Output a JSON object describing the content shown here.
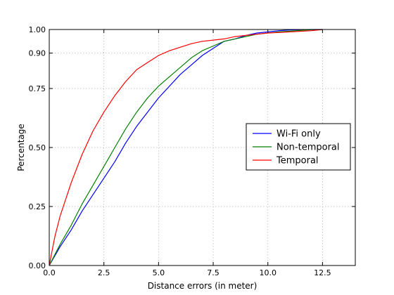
{
  "chart_data": {
    "type": "line",
    "title": "",
    "xlabel": "Distance errors (in meter)",
    "ylabel": "Percentage",
    "xlim": [
      0,
      14
    ],
    "ylim": [
      0,
      1
    ],
    "xticks": [
      0,
      2.5,
      5,
      7.5,
      10,
      12.5
    ],
    "xtick_labels": [
      "0.0",
      "2.5",
      "5.0",
      "7.5",
      "10.0",
      "12.5"
    ],
    "yticks": [
      0,
      0.25,
      0.5,
      0.75,
      0.9,
      1.0
    ],
    "ytick_labels": [
      "0.00",
      "0.25",
      "0.50",
      "0.75",
      "0.90",
      "1.00"
    ],
    "grid": true,
    "legend_position": "center-right",
    "series": [
      {
        "name": "Wi-Fi only",
        "color": "#0000ff",
        "x": [
          0,
          0.5,
          1.0,
          1.5,
          2.0,
          2.5,
          3.0,
          3.5,
          4.0,
          4.5,
          5.0,
          5.5,
          6.0,
          6.5,
          7.0,
          7.5,
          8.0,
          8.5,
          9.0,
          9.5,
          10.0,
          10.5,
          11.0,
          11.5,
          12.0,
          12.5
        ],
        "y": [
          0.0,
          0.08,
          0.15,
          0.23,
          0.3,
          0.37,
          0.44,
          0.52,
          0.59,
          0.65,
          0.71,
          0.76,
          0.81,
          0.85,
          0.89,
          0.92,
          0.95,
          0.96,
          0.975,
          0.985,
          0.99,
          0.995,
          0.998,
          0.999,
          1.0,
          1.0
        ]
      },
      {
        "name": "Non-temporal",
        "color": "#008000",
        "x": [
          0,
          0.5,
          1.0,
          1.5,
          2.0,
          2.5,
          3.0,
          3.5,
          4.0,
          4.5,
          5.0,
          5.5,
          6.0,
          6.5,
          7.0,
          7.5,
          8.0,
          8.5,
          9.0,
          9.5,
          10.0,
          10.5,
          11.0,
          11.5,
          12.0,
          12.5
        ],
        "y": [
          0.0,
          0.09,
          0.17,
          0.26,
          0.34,
          0.42,
          0.5,
          0.58,
          0.65,
          0.71,
          0.76,
          0.8,
          0.84,
          0.88,
          0.91,
          0.93,
          0.95,
          0.96,
          0.97,
          0.98,
          0.985,
          0.99,
          0.993,
          0.996,
          0.999,
          1.0
        ]
      },
      {
        "name": "Temporal",
        "color": "#ff0000",
        "x": [
          0,
          0.25,
          0.5,
          1.0,
          1.5,
          2.0,
          2.5,
          3.0,
          3.5,
          4.0,
          4.5,
          5.0,
          5.5,
          6.0,
          6.5,
          7.0,
          7.5,
          8.0,
          8.5,
          9.0,
          9.5,
          10.0,
          11.0,
          12.0,
          12.5
        ],
        "y": [
          0.0,
          0.12,
          0.21,
          0.35,
          0.47,
          0.57,
          0.65,
          0.72,
          0.78,
          0.83,
          0.86,
          0.89,
          0.91,
          0.925,
          0.94,
          0.95,
          0.955,
          0.96,
          0.97,
          0.975,
          0.98,
          0.985,
          0.99,
          0.995,
          1.0
        ]
      }
    ]
  }
}
